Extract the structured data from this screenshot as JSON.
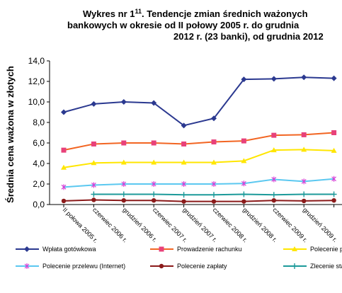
{
  "chart_data": {
    "type": "line",
    "title": {
      "prefix": "Wykres nr 1",
      "superscript": "11",
      "rest": ". Tendencje zmian średnich ważonych"
    },
    "title_lines": [
      "bankowych w okresie od II połowy 2005 r. do grudnia",
      "2012 r. (23 banki), od grudnia 2012"
    ],
    "y_label": "Średnia cena ważona w złotych",
    "categories": [
      "II połowa 2005 r.",
      "czerwiec 2006 r.",
      "grudzień 2006 r.",
      "czerwiec 2007 r.",
      "grudzień 2007 r.",
      "czerwiec 2008 r.",
      "grudzień 2008 r.",
      "czerwiec 2009 r.",
      "grudzień 2009 r.",
      null
    ],
    "ylim": [
      0,
      14
    ],
    "yticks": [
      {
        "value": 0,
        "label": "0,0"
      },
      {
        "value": 2,
        "label": "2,0"
      },
      {
        "value": 4,
        "label": "4,0"
      },
      {
        "value": 6,
        "label": "6,0"
      },
      {
        "value": 8,
        "label": "8,0"
      },
      {
        "value": 10,
        "label": "10,0"
      },
      {
        "value": 12,
        "label": "12,0"
      },
      {
        "value": 14,
        "label": "14,0"
      }
    ],
    "grid": false,
    "series": [
      {
        "name": "Wpłata gotówkowa",
        "color": "#2b3990",
        "marker": "diamond",
        "values": [
          9.0,
          9.8,
          10.0,
          9.9,
          7.7,
          8.4,
          12.2,
          12.25,
          12.4,
          12.3
        ]
      },
      {
        "name": "Prowadzenie rachunku",
        "color": "#f26522",
        "marker": "square",
        "values": [
          5.3,
          5.9,
          6.0,
          6.0,
          5.9,
          6.1,
          6.2,
          6.75,
          6.8,
          7.0
        ]
      },
      {
        "name": "Polecenie prz",
        "color": "#ffe600",
        "marker": "triangle",
        "values": [
          3.6,
          4.05,
          4.1,
          4.1,
          4.1,
          4.1,
          4.25,
          5.3,
          5.35,
          5.25
        ]
      },
      {
        "name": "Polecenie przelewu (Internet)",
        "color": "#5bc8f0",
        "marker": "star",
        "values": [
          1.7,
          1.9,
          2.0,
          2.0,
          2.0,
          2.0,
          2.05,
          2.45,
          2.25,
          2.5
        ]
      },
      {
        "name": "Polecenie zapłaty",
        "color": "#8b1a1a",
        "marker": "circle",
        "values": [
          0.35,
          0.45,
          0.4,
          0.4,
          0.3,
          0.3,
          0.3,
          0.4,
          0.35,
          0.4
        ]
      },
      {
        "name": "Zlecenie stałe",
        "color": "#1c9a9a",
        "marker": "plus",
        "values": [
          null,
          1.0,
          1.0,
          1.0,
          0.95,
          0.95,
          1.0,
          0.95,
          1.0,
          1.0
        ]
      }
    ]
  }
}
